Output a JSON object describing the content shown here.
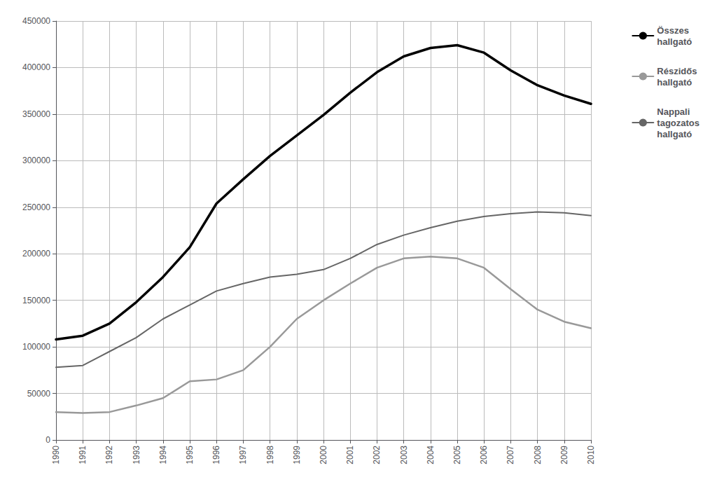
{
  "chart_data": {
    "type": "line",
    "x": [
      1990,
      1991,
      1992,
      1993,
      1994,
      1995,
      1996,
      1997,
      1998,
      1999,
      2000,
      2001,
      2002,
      2003,
      2004,
      2005,
      2006,
      2007,
      2008,
      2009,
      2010
    ],
    "series": [
      {
        "name": "Összes\nhallgató",
        "color": "#000000",
        "values": [
          108000,
          112000,
          125000,
          148000,
          175000,
          207000,
          254000,
          280000,
          305000,
          327000,
          349000,
          373000,
          395000,
          412000,
          421000,
          424000,
          416000,
          397000,
          381000,
          370000,
          361000
        ]
      },
      {
        "name": "Részidős\nhallgató",
        "color": "#999999",
        "values": [
          30000,
          29000,
          30000,
          37000,
          45000,
          63000,
          65000,
          75000,
          100000,
          130000,
          150000,
          168000,
          185000,
          195000,
          197000,
          195000,
          185000,
          162000,
          140000,
          127000,
          120000
        ]
      },
      {
        "name": "Nappali\ntagozatos\nhallgató",
        "color": "#666666",
        "values": [
          78000,
          80000,
          95000,
          110000,
          130000,
          145000,
          160000,
          168000,
          175000,
          178000,
          183000,
          195000,
          210000,
          220000,
          228000,
          235000,
          240000,
          243000,
          245000,
          244000,
          241000
        ]
      }
    ],
    "xlim": [
      1990,
      2010
    ],
    "xticks": [
      1990,
      1991,
      1992,
      1993,
      1994,
      1995,
      1996,
      1997,
      1998,
      1999,
      2000,
      2001,
      2002,
      2003,
      2004,
      2005,
      2006,
      2007,
      2008,
      2009,
      2010
    ],
    "ylim": [
      0,
      450000
    ],
    "yticks": [
      0,
      50000,
      100000,
      150000,
      200000,
      250000,
      300000,
      350000,
      400000,
      450000
    ],
    "grid": true,
    "legend": "right"
  }
}
